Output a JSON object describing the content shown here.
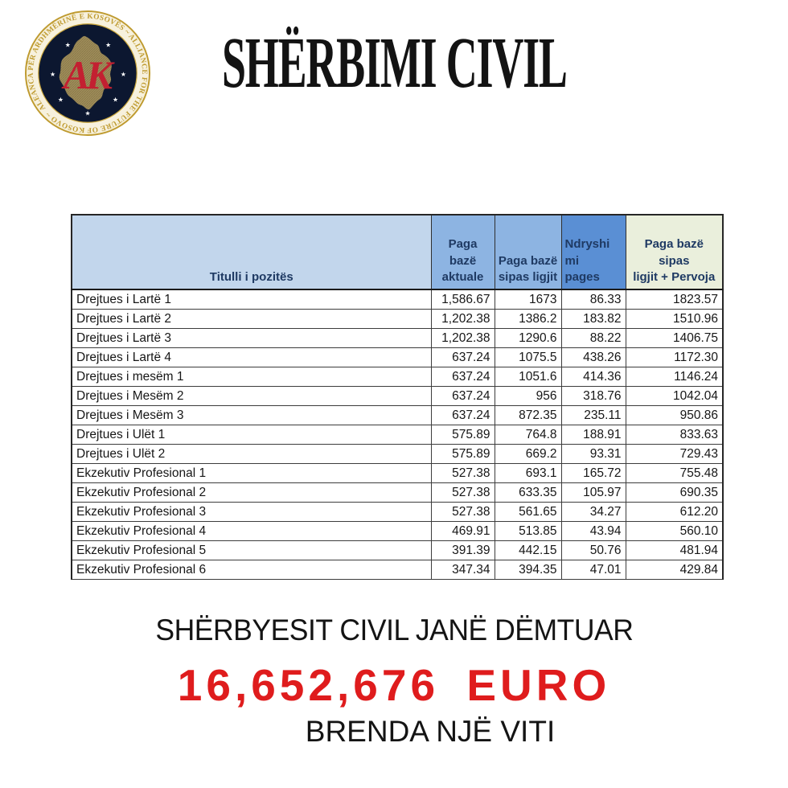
{
  "logo": {
    "ring_text": "ALEANCA PËR ARDHMËRINË E KOSOVËS ~ ALLIANCE FOR THE FUTURE OF KOSOVO ~",
    "monogram": "AK",
    "colors": {
      "navy": "#0c1730",
      "gold": "#bf9b30",
      "cream": "#f7f1dd",
      "map_tan": "#a3905c",
      "monogram_red": "#c32031"
    }
  },
  "header": {
    "title": "SHËRBIMI CIVIL"
  },
  "table": {
    "header": {
      "col1": "Titulli i pozitës",
      "col2": "Paga\nbazë\naktuale",
      "col3": "Paga bazë\nsipas ligjit",
      "col4": "Ndryshi\nmi\npages",
      "col5": "Paga bazë sipas\nligjit + Pervoja"
    },
    "header_colors": {
      "col1_bg": "#c2d6ec",
      "col2_bg": "#8db4e2",
      "col3_bg": "#8db4e2",
      "col4_bg": "#5a8fd4",
      "col5_bg": "#eaefdc",
      "text": "#1f3a63"
    },
    "rows": [
      [
        "Drejtues i Lartë 1",
        "1,586.67",
        "1673",
        "86.33",
        "1823.57"
      ],
      [
        "Drejtues i Lartë 2",
        "1,202.38",
        "1386.2",
        "183.82",
        "1510.96"
      ],
      [
        "Drejtues i Lartë 3",
        "1,202.38",
        "1290.6",
        "88.22",
        "1406.75"
      ],
      [
        "Drejtues i Lartë 4",
        "637.24",
        "1075.5",
        "438.26",
        "1172.30"
      ],
      [
        "Drejtues i mesëm 1",
        "637.24",
        "1051.6",
        "414.36",
        "1146.24"
      ],
      [
        "Drejtues i Mesëm 2",
        "637.24",
        "956",
        "318.76",
        "1042.04"
      ],
      [
        "Drejtues i Mesëm 3",
        "637.24",
        "872.35",
        "235.11",
        "950.86"
      ],
      [
        "Drejtues i Ulët 1",
        "575.89",
        "764.8",
        "188.91",
        "833.63"
      ],
      [
        "Drejtues i Ulët 2",
        "575.89",
        "669.2",
        "93.31",
        "729.43"
      ],
      [
        "Ekzekutiv Profesional 1",
        "527.38",
        "693.1",
        "165.72",
        "755.48"
      ],
      [
        "Ekzekutiv Profesional 2",
        "527.38",
        "633.35",
        "105.97",
        "690.35"
      ],
      [
        "Ekzekutiv Profesional 3",
        "527.38",
        "561.65",
        "34.27",
        "612.20"
      ],
      [
        "Ekzekutiv Profesional 4",
        "469.91",
        "513.85",
        "43.94",
        "560.10"
      ],
      [
        "Ekzekutiv Profesional 5",
        "391.39",
        "442.15",
        "50.76",
        "481.94"
      ],
      [
        "Ekzekutiv Profesional 6",
        "347.34",
        "394.35",
        "47.01",
        "429.84"
      ]
    ]
  },
  "footer": {
    "line1": "SHËRBYESIT CIVIL JANË DËMTUAR",
    "amount": "16,652,676 EURO",
    "amount_color": "#df1c1d",
    "line3": "BRENDA NJË VITI"
  }
}
